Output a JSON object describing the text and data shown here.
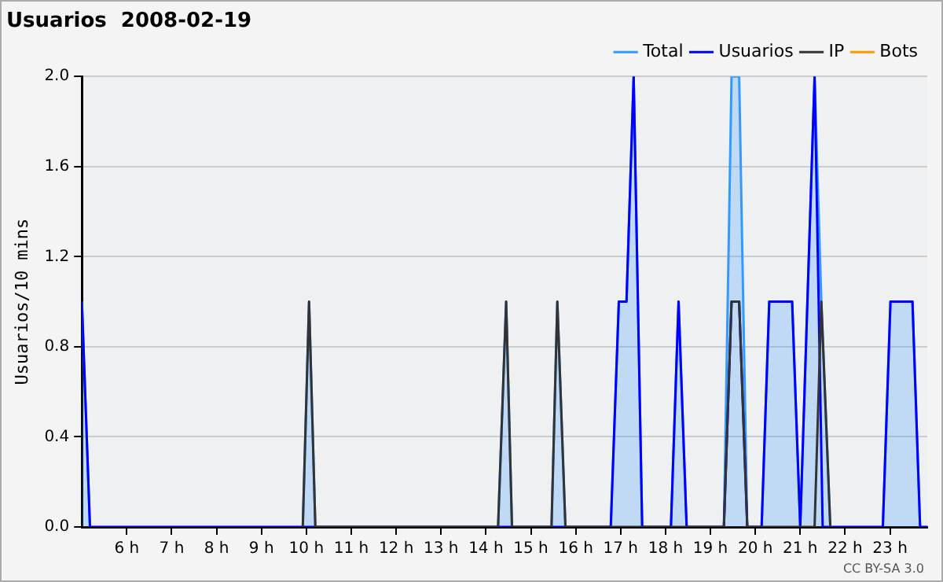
{
  "chart_data": {
    "type": "line",
    "title": "Usuarios  2008-02-19",
    "ylabel": "Usuarios/10 mins",
    "annotations": [
      "CC BY-SA 3.0"
    ],
    "xlim": [
      5,
      23.83
    ],
    "xticks": [
      {
        "value": 6,
        "label": "6 h"
      },
      {
        "value": 7,
        "label": "7 h"
      },
      {
        "value": 8,
        "label": "8 h"
      },
      {
        "value": 9,
        "label": "9 h"
      },
      {
        "value": 10,
        "label": "10 h"
      },
      {
        "value": 11,
        "label": "11 h"
      },
      {
        "value": 12,
        "label": "12 h"
      },
      {
        "value": 13,
        "label": "13 h"
      },
      {
        "value": 14,
        "label": "14 h"
      },
      {
        "value": 15,
        "label": "15 h"
      },
      {
        "value": 16,
        "label": "16 h"
      },
      {
        "value": 17,
        "label": "17 h"
      },
      {
        "value": 18,
        "label": "18 h"
      },
      {
        "value": 19,
        "label": "19 h"
      },
      {
        "value": 20,
        "label": "20 h"
      },
      {
        "value": 21,
        "label": "21 h"
      },
      {
        "value": 22,
        "label": "22 h"
      },
      {
        "value": 23,
        "label": "23 h"
      }
    ],
    "ylim": [
      0,
      2
    ],
    "yticks": [
      {
        "value": 0,
        "label": "0.0"
      },
      {
        "value": 0.4,
        "label": "0.4"
      },
      {
        "value": 0.8,
        "label": "0.8"
      },
      {
        "value": 1.2,
        "label": "1.2"
      },
      {
        "value": 1.6,
        "label": "1.6"
      },
      {
        "value": 2,
        "label": "2.0"
      }
    ],
    "grid": "y",
    "legend": "top right",
    "marker": "none",
    "line_style": "solid",
    "series": [
      {
        "name": "Total",
        "type": "area",
        "color": "#3399ff",
        "x": [
          5,
          5.18,
          7,
          9.92,
          10.06,
          10.2,
          12,
          14.27,
          14.45,
          14.58,
          15,
          15.46,
          15.59,
          15.77,
          16,
          16.78,
          16.96,
          17.13,
          17.29,
          17.48,
          18,
          18.12,
          18.29,
          18.47,
          19,
          19.3,
          19.47,
          19.64,
          19.82,
          20,
          20.14,
          20.31,
          20.82,
          21,
          21.32,
          21.47,
          21.67,
          22,
          22.84,
          23.01,
          23.5,
          23.67
        ],
        "values": [
          1,
          0,
          null,
          0,
          1,
          0,
          null,
          0,
          1,
          0,
          null,
          0,
          1,
          0,
          null,
          0,
          1,
          1,
          2,
          0,
          null,
          0,
          1,
          0,
          null,
          0,
          2,
          2,
          0,
          null,
          0,
          1,
          1,
          0,
          2,
          1,
          0,
          null,
          0,
          1,
          1,
          0
        ]
      },
      {
        "name": "Usuarios",
        "type": "line",
        "color": "#0000ff",
        "x": [
          5,
          5.18,
          16.78,
          16.96,
          17.13,
          17.29,
          17.48,
          18.12,
          18.29,
          18.47,
          19.3,
          19.47,
          19.64,
          19.82,
          20.14,
          20.31,
          20.82,
          21,
          21.32,
          21.5,
          22.84,
          23.01,
          23.5,
          23.67,
          23.83
        ],
        "values": [
          1,
          0,
          0,
          1,
          1,
          2,
          0,
          0,
          1,
          0,
          0,
          1,
          1,
          0,
          0,
          1,
          1,
          0,
          2,
          0,
          0,
          1,
          1,
          0,
          0
        ]
      },
      {
        "name": "IP",
        "type": "line",
        "color": "#333333",
        "x": [
          9.92,
          10.06,
          10.2,
          14.27,
          14.45,
          14.58,
          15.46,
          15.59,
          15.77,
          19.3,
          19.47,
          19.64,
          19.82,
          21.32,
          21.47,
          21.67
        ],
        "values": [
          0,
          1,
          0,
          0,
          1,
          0,
          0,
          1,
          0,
          0,
          1,
          1,
          0,
          0,
          1,
          0
        ]
      },
      {
        "name": "Bots",
        "type": "line",
        "color": "#ff9900"
      }
    ]
  }
}
